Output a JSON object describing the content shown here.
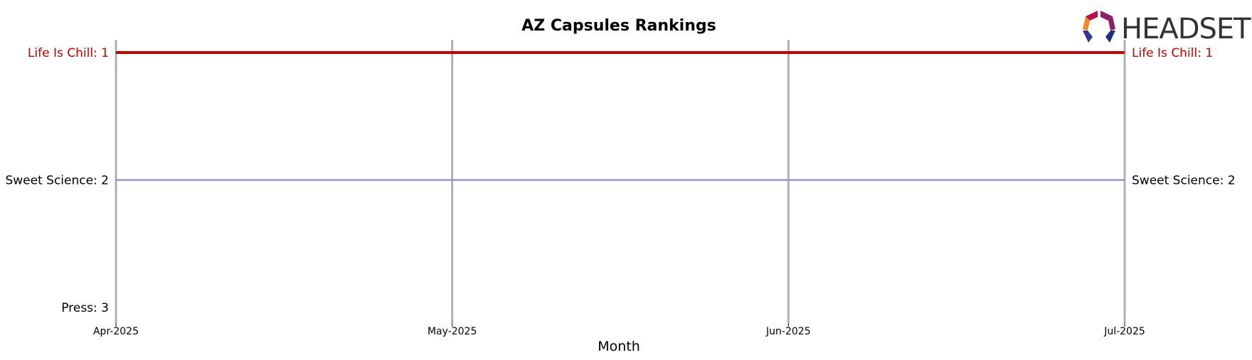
{
  "chart_data": {
    "type": "line",
    "title": "AZ Capsules Rankings",
    "xlabel": "Month",
    "x": [
      "Apr-2025",
      "May-2025",
      "Jun-2025",
      "Jul-2025"
    ],
    "ylim": [
      1,
      3
    ],
    "y_inverted": true,
    "grid": "vertical",
    "series": [
      {
        "name": "Life Is Chill",
        "values": [
          1,
          1,
          1,
          1
        ],
        "color": "#c00000",
        "highlight": true,
        "start_label": "Life Is Chill: 1",
        "end_label": "Life Is Chill: 1"
      },
      {
        "name": "Sweet Science",
        "values": [
          2,
          2,
          2,
          2
        ],
        "color": "#9b8fd4",
        "highlight": false,
        "start_label": "Sweet Science: 2",
        "end_label": "Sweet Science: 2"
      },
      {
        "name": "Press",
        "values": [
          3,
          null,
          null,
          null
        ],
        "color": "#000000",
        "highlight": false,
        "start_label": "Press: 3",
        "end_label": ""
      }
    ]
  },
  "logo": {
    "text": "HEADSET",
    "colors": [
      "#e0412c",
      "#f08a24",
      "#b5124b",
      "#8e1f6b",
      "#2b3990",
      "#1f2f7a"
    ]
  }
}
